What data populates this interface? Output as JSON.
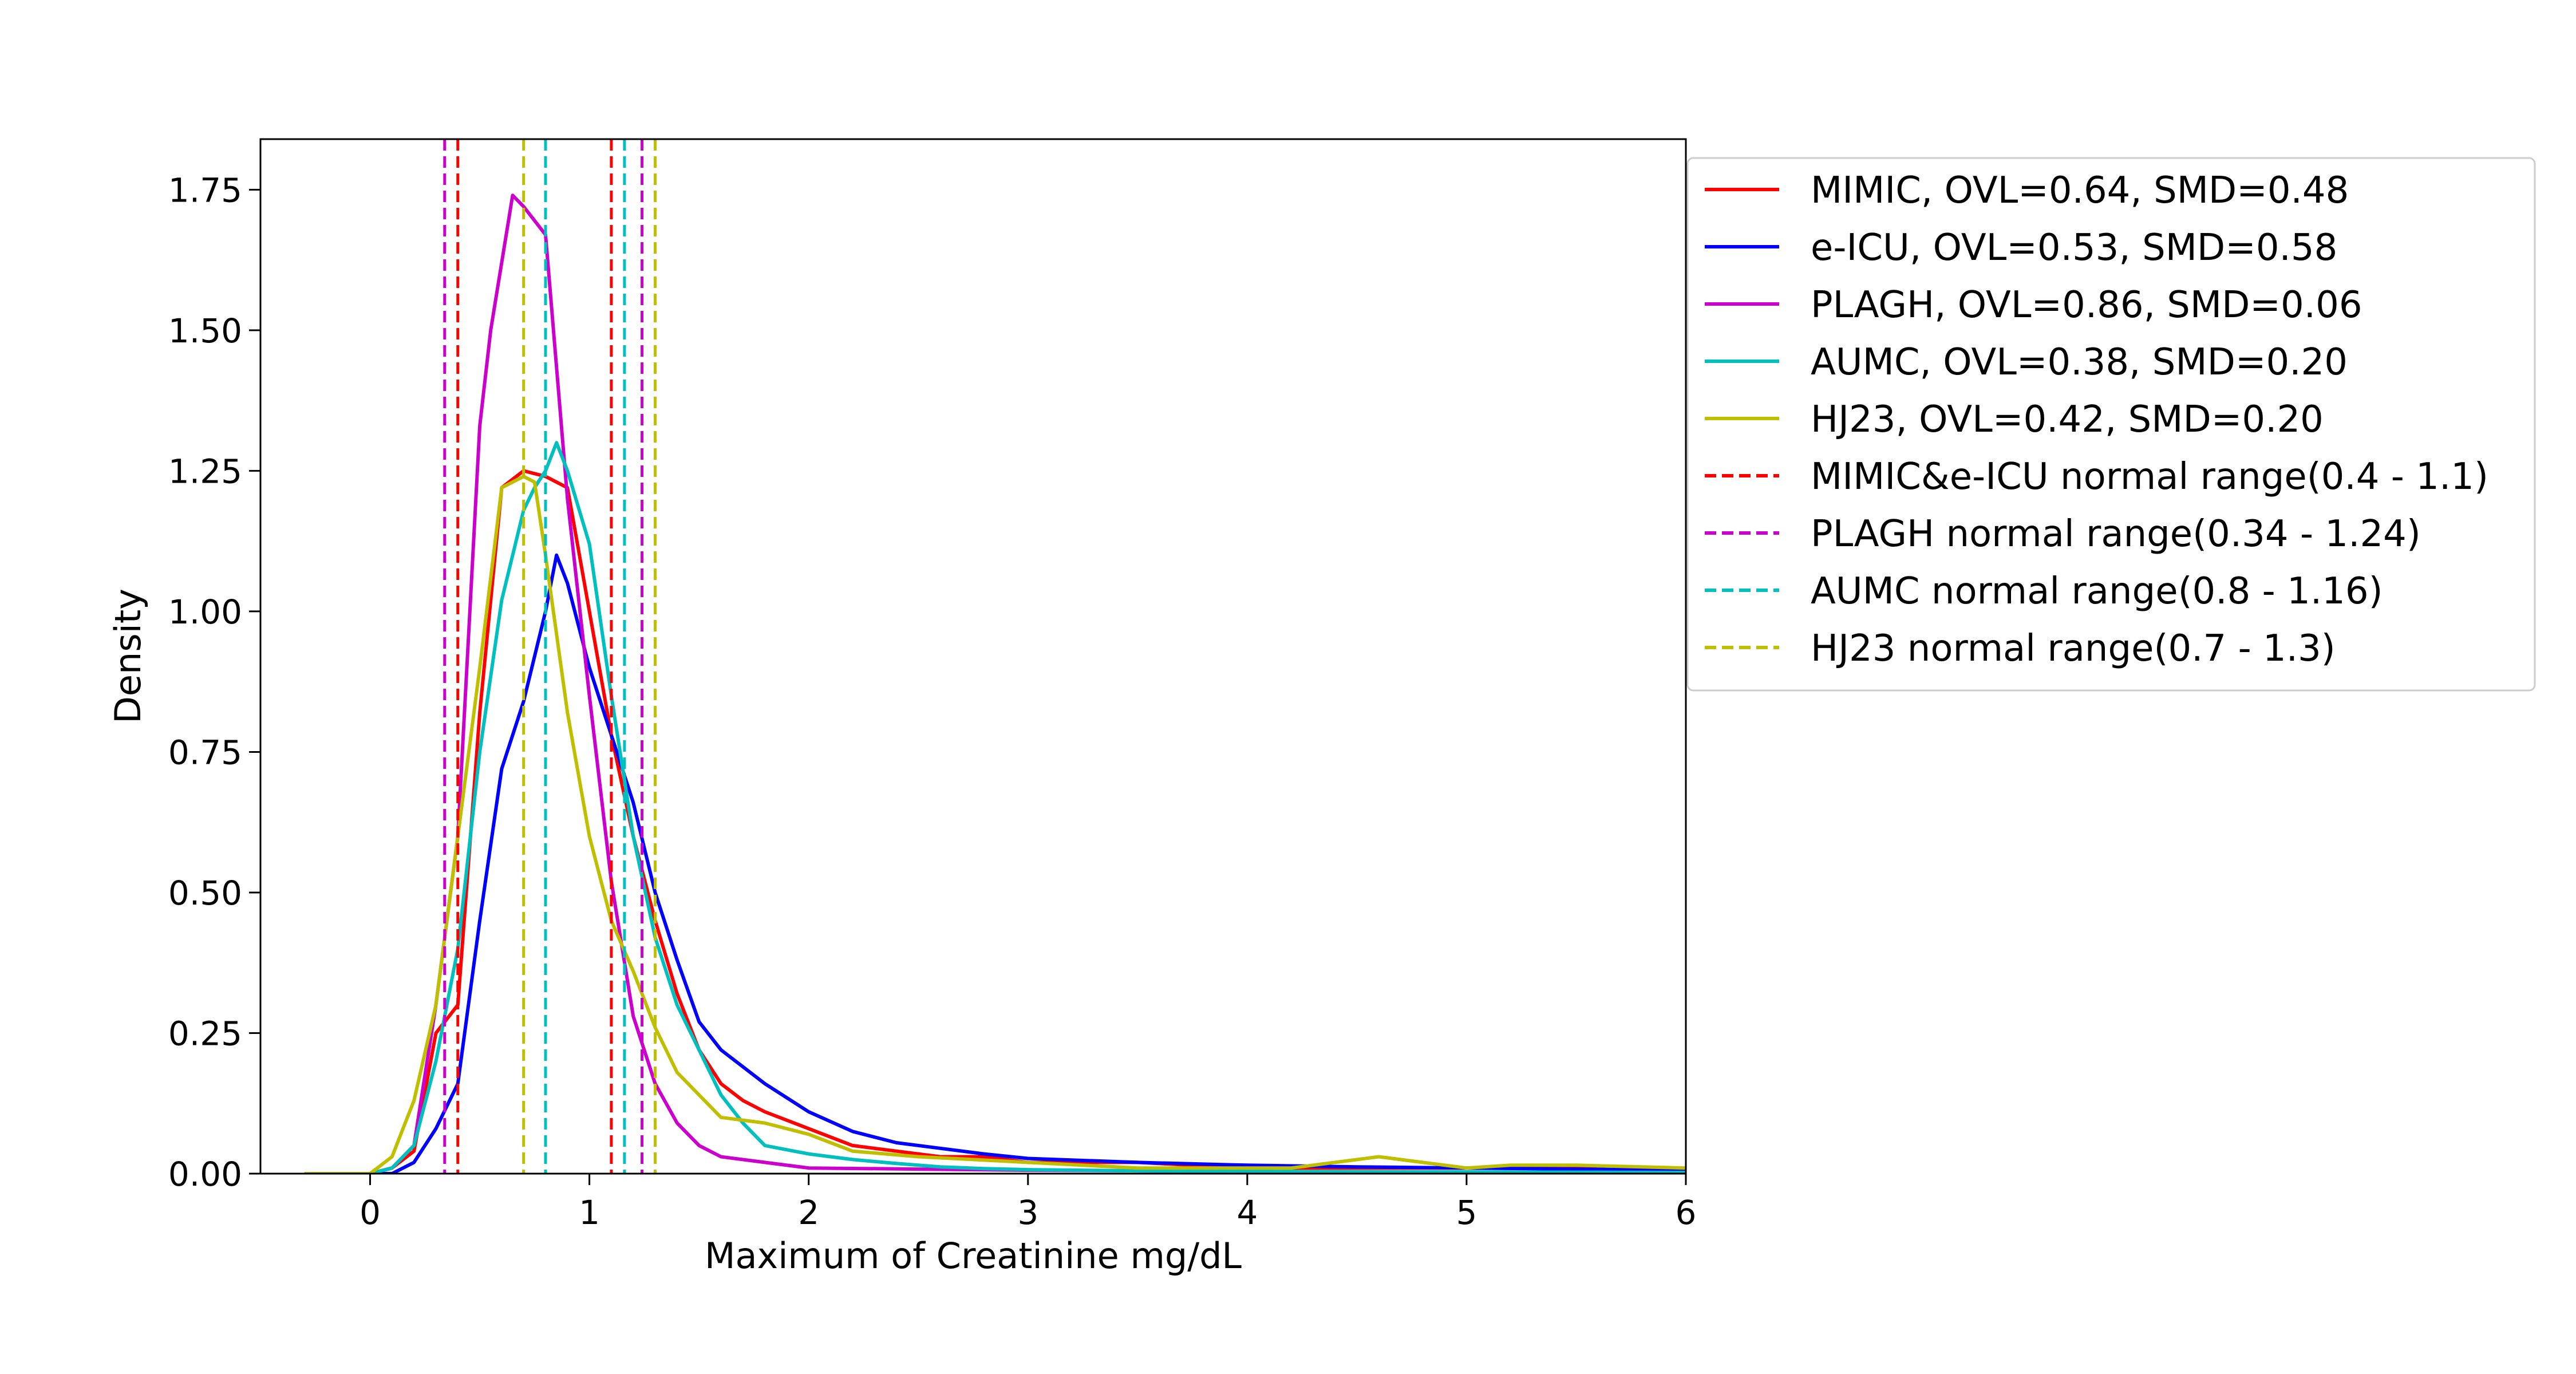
{
  "chart_data": {
    "type": "line",
    "title": "",
    "xlabel": "Maximum of Creatinine mg/dL",
    "ylabel": "Density",
    "xlim": [
      -0.5,
      6
    ],
    "ylim": [
      0,
      1.84
    ],
    "x_ticks": [
      0,
      1,
      2,
      3,
      4,
      5,
      6
    ],
    "y_ticks": [
      0.0,
      0.25,
      0.5,
      0.75,
      1.0,
      1.25,
      1.5,
      1.75
    ],
    "x_tick_labels": [
      "0",
      "1",
      "2",
      "3",
      "4",
      "5",
      "6"
    ],
    "y_tick_labels": [
      "0.00",
      "0.25",
      "0.50",
      "0.75",
      "1.00",
      "1.25",
      "1.50",
      "1.75"
    ],
    "grid": false,
    "legend_position": "outside right, top",
    "series": [
      {
        "name": "MIMIC, OVL=0.64, SMD=0.48",
        "color": "#ff0000",
        "x": [
          -0.3,
          0.0,
          0.1,
          0.2,
          0.3,
          0.4,
          0.5,
          0.6,
          0.7,
          0.8,
          0.9,
          1.0,
          1.1,
          1.2,
          1.3,
          1.4,
          1.5,
          1.6,
          1.7,
          1.8,
          2.0,
          2.2,
          2.4,
          2.6,
          2.8,
          3.0,
          3.5,
          4.0,
          4.5,
          5.0,
          5.5,
          6.0
        ],
        "y": [
          0.0,
          0.0,
          0.01,
          0.04,
          0.25,
          0.3,
          0.82,
          1.22,
          1.25,
          1.24,
          1.22,
          1.0,
          0.78,
          0.6,
          0.45,
          0.32,
          0.22,
          0.16,
          0.13,
          0.11,
          0.08,
          0.05,
          0.04,
          0.03,
          0.03,
          0.02,
          0.02,
          0.01,
          0.01,
          0.01,
          0.01,
          0.0
        ]
      },
      {
        "name": "e-ICU, OVL=0.53, SMD=0.58",
        "color": "#0000ff",
        "x": [
          -0.3,
          0.0,
          0.1,
          0.2,
          0.3,
          0.4,
          0.5,
          0.6,
          0.7,
          0.8,
          0.85,
          0.9,
          1.0,
          1.1,
          1.2,
          1.3,
          1.4,
          1.5,
          1.6,
          1.7,
          1.8,
          2.0,
          2.2,
          2.4,
          2.6,
          2.8,
          3.0,
          3.5,
          4.0,
          4.5,
          5.0,
          5.5,
          6.0
        ],
        "y": [
          0.0,
          0.0,
          0.0,
          0.02,
          0.08,
          0.16,
          0.45,
          0.72,
          0.84,
          1.0,
          1.1,
          1.05,
          0.9,
          0.78,
          0.66,
          0.5,
          0.38,
          0.27,
          0.22,
          0.19,
          0.16,
          0.11,
          0.075,
          0.055,
          0.045,
          0.035,
          0.027,
          0.02,
          0.015,
          0.012,
          0.01,
          0.008,
          0.006
        ]
      },
      {
        "name": "PLAGH, OVL=0.86, SMD=0.06",
        "color": "#cc00cc",
        "x": [
          -0.3,
          0.0,
          0.1,
          0.2,
          0.3,
          0.4,
          0.5,
          0.55,
          0.65,
          0.7,
          0.8,
          0.9,
          1.0,
          1.1,
          1.2,
          1.3,
          1.4,
          1.5,
          1.6,
          1.8,
          2.0,
          2.5,
          3.0,
          4.0,
          5.0,
          6.0
        ],
        "y": [
          0.0,
          0.0,
          0.01,
          0.05,
          0.3,
          0.6,
          1.33,
          1.5,
          1.74,
          1.72,
          1.67,
          1.2,
          0.85,
          0.52,
          0.28,
          0.16,
          0.09,
          0.05,
          0.03,
          0.02,
          0.01,
          0.008,
          0.006,
          0.004,
          0.002,
          0.001
        ]
      },
      {
        "name": "AUMC, OVL=0.38, SMD=0.20",
        "color": "#00bfbf",
        "x": [
          -0.3,
          0.0,
          0.1,
          0.2,
          0.3,
          0.4,
          0.5,
          0.6,
          0.7,
          0.75,
          0.8,
          0.85,
          0.9,
          1.0,
          1.1,
          1.2,
          1.3,
          1.4,
          1.5,
          1.6,
          1.7,
          1.8,
          2.0,
          2.2,
          2.4,
          2.6,
          2.8,
          3.0,
          3.5,
          4.0,
          5.0,
          6.0
        ],
        "y": [
          0.0,
          0.0,
          0.01,
          0.05,
          0.2,
          0.4,
          0.75,
          1.02,
          1.18,
          1.22,
          1.25,
          1.3,
          1.25,
          1.12,
          0.85,
          0.6,
          0.42,
          0.3,
          0.22,
          0.14,
          0.09,
          0.05,
          0.035,
          0.025,
          0.018,
          0.012,
          0.009,
          0.007,
          0.005,
          0.004,
          0.003,
          0.002
        ]
      },
      {
        "name": "HJ23, OVL=0.42, SMD=0.20",
        "color": "#bfbf00",
        "x": [
          -0.3,
          0.0,
          0.1,
          0.2,
          0.3,
          0.4,
          0.5,
          0.6,
          0.65,
          0.7,
          0.75,
          0.8,
          0.9,
          1.0,
          1.1,
          1.2,
          1.3,
          1.4,
          1.6,
          1.8,
          2.0,
          2.2,
          2.5,
          3.0,
          3.5,
          4.0,
          4.2,
          4.4,
          4.6,
          4.8,
          5.0,
          5.2,
          5.5,
          6.0
        ],
        "y": [
          0.0,
          0.0,
          0.03,
          0.13,
          0.3,
          0.6,
          0.9,
          1.22,
          1.23,
          1.24,
          1.23,
          1.1,
          0.82,
          0.6,
          0.45,
          0.36,
          0.26,
          0.18,
          0.1,
          0.09,
          0.07,
          0.04,
          0.03,
          0.02,
          0.01,
          0.01,
          0.01,
          0.02,
          0.03,
          0.02,
          0.01,
          0.015,
          0.015,
          0.01
        ]
      }
    ],
    "normal_ranges": [
      {
        "name": "MIMIC&e-ICU normal range(0.4 - 1.1)",
        "color": "#ff0000",
        "low": 0.4,
        "high": 1.1
      },
      {
        "name": "PLAGH normal range(0.34 - 1.24)",
        "color": "#cc00cc",
        "low": 0.34,
        "high": 1.24
      },
      {
        "name": "AUMC normal range(0.8 - 1.16)",
        "color": "#00bfbf",
        "low": 0.8,
        "high": 1.16
      },
      {
        "name": "HJ23 normal range(0.7 - 1.3)",
        "color": "#bfbf00",
        "low": 0.7,
        "high": 1.3
      }
    ]
  }
}
